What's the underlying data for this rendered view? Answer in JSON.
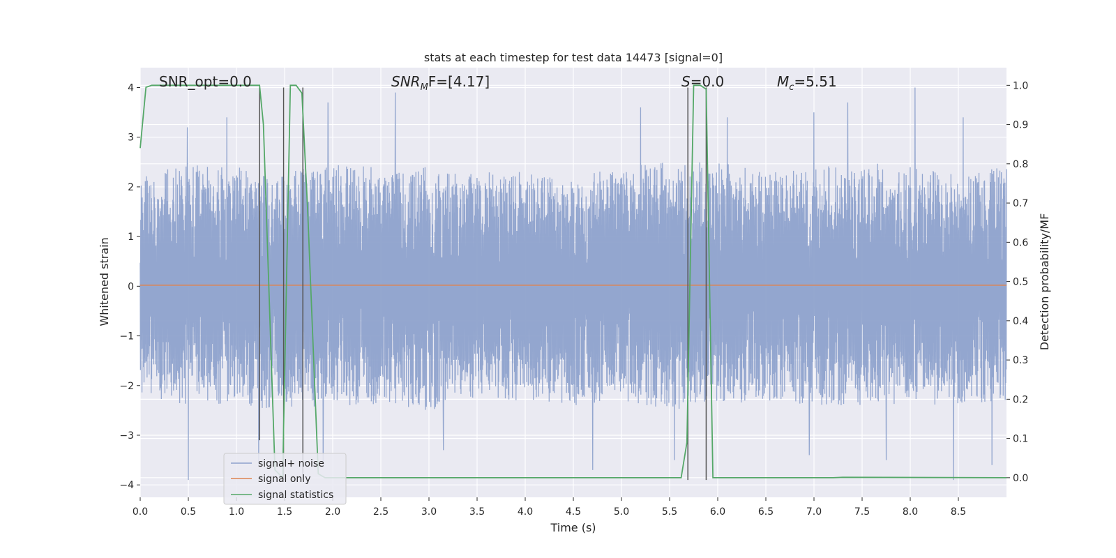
{
  "chart_data": {
    "type": "line",
    "title": "stats at each timestep for test data 14473 [signal=0]",
    "xlabel": "Time (s)",
    "ylabel": "Whitened strain",
    "ylabel_right": "Detection probability/MF",
    "xlim": [
      0,
      9.0
    ],
    "ylim": [
      -4.25,
      4.4
    ],
    "ylim_right": [
      -0.05,
      1.045
    ],
    "x_ticks": [
      "0.0",
      "0.5",
      "1.0",
      "1.5",
      "2.0",
      "2.5",
      "3.0",
      "3.5",
      "4.0",
      "4.5",
      "5.0",
      "5.5",
      "6.0",
      "6.5",
      "7.0",
      "7.5",
      "8.0",
      "8.5"
    ],
    "y_ticks": [
      "4",
      "3",
      "2",
      "1",
      "0",
      "−1",
      "−2",
      "−3",
      "−4"
    ],
    "y_ticks_right": [
      "1.0",
      "0.9",
      "0.8",
      "0.7",
      "0.6",
      "0.5",
      "0.4",
      "0.3",
      "0.2",
      "0.1",
      "0.0"
    ],
    "grid": true,
    "legend_position": "lower-left",
    "colors": {
      "noise": "#8ea2cc",
      "signal_only": "#dd8452",
      "stats": "#55a868",
      "vlines": "#555555",
      "background": "#eaeaf2"
    },
    "annotations": {
      "snr_opt": "SNR_opt=0.0",
      "snr_mf_name": "SNR",
      "snr_mf_sub": "M",
      "snr_mf_rest": "F=[4.17]",
      "s_name": "S",
      "s_rest": "=0.0",
      "mc_name": "M",
      "mc_sub": "c",
      "mc_rest": "=5.51"
    },
    "noise_envelope": {
      "x": [
        0.0,
        0.5,
        1.0,
        1.5,
        2.0,
        2.5,
        3.0,
        3.5,
        4.0,
        4.5,
        5.0,
        5.5,
        6.0,
        6.5,
        7.0,
        7.5,
        8.0,
        8.5,
        9.0
      ],
      "upper": [
        2.2,
        2.5,
        2.4,
        2.3,
        2.5,
        2.4,
        2.4,
        2.3,
        2.3,
        2.2,
        2.4,
        2.5,
        2.5,
        2.3,
        2.4,
        2.5,
        2.4,
        2.3,
        2.4
      ],
      "lower": [
        -2.2,
        -2.4,
        -2.4,
        -2.5,
        -2.4,
        -2.4,
        -2.5,
        -2.3,
        -2.3,
        -2.4,
        -2.3,
        -2.5,
        -2.4,
        -2.3,
        -2.4,
        -2.4,
        -2.4,
        -2.4,
        -2.3
      ],
      "peaks_x": [
        0.49,
        0.9,
        1.95,
        2.65,
        4.7,
        5.2,
        6.1,
        7.0,
        7.35,
        8.05,
        8.55
      ],
      "peaks_y": [
        3.2,
        3.4,
        3.7,
        3.9,
        3.3,
        3.6,
        3.4,
        3.5,
        3.7,
        4.0,
        3.4
      ],
      "dips_x": [
        0.5,
        1.23,
        1.9,
        3.15,
        4.7,
        5.55,
        6.95,
        7.75,
        8.45,
        8.85
      ],
      "dips_y": [
        -3.9,
        -3.6,
        -3.6,
        -3.3,
        -3.7,
        -3.5,
        -3.4,
        -3.5,
        -3.9,
        -3.6
      ]
    },
    "series": [
      {
        "name": "signal+ noise",
        "axis": "left",
        "style": "noise"
      },
      {
        "name": "signal only",
        "axis": "left",
        "x": [
          0.0,
          9.0
        ],
        "y": [
          0.02,
          0.02
        ]
      },
      {
        "name": "signal statistics",
        "axis": "right",
        "x": [
          0.0,
          0.06,
          0.12,
          1.24,
          1.28,
          1.4,
          1.48,
          1.56,
          1.62,
          1.68,
          1.74,
          1.85,
          1.92,
          5.62,
          5.68,
          5.75,
          5.82,
          5.88,
          5.95,
          7.2,
          7.3,
          9.0
        ],
        "y": [
          0.84,
          0.995,
          1.0,
          1.0,
          0.9,
          0.02,
          0.0,
          1.0,
          1.0,
          0.98,
          0.68,
          0.01,
          0.0,
          0.0,
          0.09,
          1.0,
          1.0,
          0.99,
          0.0,
          0.0,
          0.001,
          0.0
        ]
      }
    ],
    "vertical_lines": {
      "x": [
        1.24,
        1.49,
        1.69,
        5.69,
        5.88
      ],
      "y_top": [
        4.0,
        4.0,
        4.0,
        4.0,
        4.0
      ],
      "y_bottom": [
        -3.1,
        -3.9,
        -3.9,
        -3.9,
        -3.9
      ]
    }
  }
}
